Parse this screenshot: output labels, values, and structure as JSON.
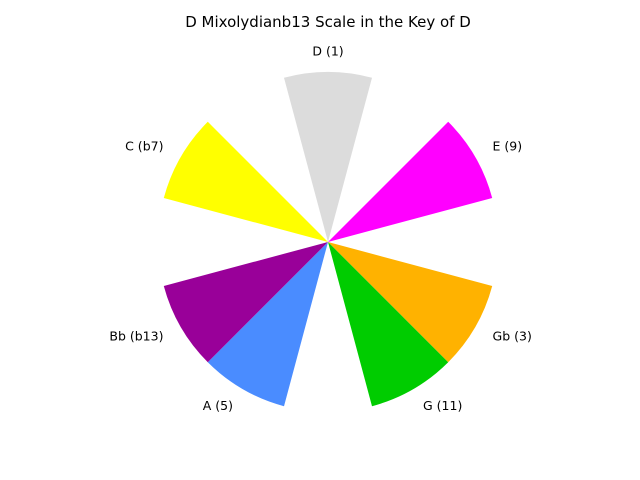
{
  "chart_data": {
    "type": "pie",
    "title": "D Mixolydianb13 Scale in the Key of D",
    "start_angle_deg": 90,
    "direction": "clockwise",
    "slices": [
      {
        "label": "D (1)",
        "value": 1,
        "included": true,
        "color": "#dcdcdc"
      },
      {
        "label": "E (9)",
        "value": 1,
        "included": true,
        "color": "#ff00ff"
      },
      {
        "label": "Gb (3)",
        "value": 1,
        "included": true,
        "color": "#ffb200"
      },
      {
        "label": "G (11)",
        "value": 1,
        "included": true,
        "color": "#00cc00"
      },
      {
        "label": "A (5)",
        "value": 1,
        "included": true,
        "color": "#4a8cff"
      },
      {
        "label": "Bb (b13)",
        "value": 1,
        "included": true,
        "color": "#990099"
      },
      {
        "label": "C (b7)",
        "value": 1,
        "included": true,
        "color": "#ffff00"
      }
    ],
    "slice_angles_deg": [
      {
        "start": 105,
        "end": 75
      },
      {
        "start": 45,
        "end": 15
      },
      {
        "start": -15,
        "end": -45
      },
      {
        "start": -45,
        "end": -75
      },
      {
        "start": -105,
        "end": -135
      },
      {
        "start": -135,
        "end": -165
      },
      {
        "start": 165,
        "end": 135
      }
    ]
  }
}
